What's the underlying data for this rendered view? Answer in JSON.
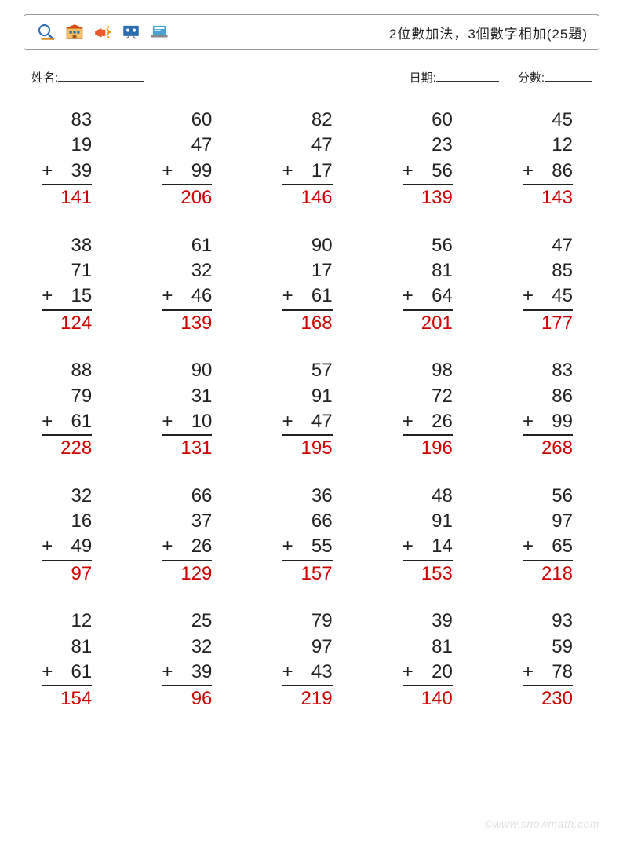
{
  "header": {
    "title": "2位數加法，3個數字相加(25題)"
  },
  "info": {
    "name_label": "姓名:",
    "date_label": "日期:",
    "score_label": "分數:"
  },
  "style": {
    "text_color": "#222222",
    "answer_color": "#d00000",
    "border_color": "#999999",
    "background_color": "#ffffff",
    "problem_fontsize": 24,
    "title_fontsize": 17,
    "info_fontsize": 15,
    "columns": 5,
    "rows": 5
  },
  "problems": [
    {
      "a": 83,
      "b": 19,
      "c": 39,
      "ans": 141
    },
    {
      "a": 60,
      "b": 47,
      "c": 99,
      "ans": 206
    },
    {
      "a": 82,
      "b": 47,
      "c": 17,
      "ans": 146
    },
    {
      "a": 60,
      "b": 23,
      "c": 56,
      "ans": 139
    },
    {
      "a": 45,
      "b": 12,
      "c": 86,
      "ans": 143
    },
    {
      "a": 38,
      "b": 71,
      "c": 15,
      "ans": 124
    },
    {
      "a": 61,
      "b": 32,
      "c": 46,
      "ans": 139
    },
    {
      "a": 90,
      "b": 17,
      "c": 61,
      "ans": 168
    },
    {
      "a": 56,
      "b": 81,
      "c": 64,
      "ans": 201
    },
    {
      "a": 47,
      "b": 85,
      "c": 45,
      "ans": 177
    },
    {
      "a": 88,
      "b": 79,
      "c": 61,
      "ans": 228
    },
    {
      "a": 90,
      "b": 31,
      "c": 10,
      "ans": 131
    },
    {
      "a": 57,
      "b": 91,
      "c": 47,
      "ans": 195
    },
    {
      "a": 98,
      "b": 72,
      "c": 26,
      "ans": 196
    },
    {
      "a": 83,
      "b": 86,
      "c": 99,
      "ans": 268
    },
    {
      "a": 32,
      "b": 16,
      "c": 49,
      "ans": 97
    },
    {
      "a": 66,
      "b": 37,
      "c": 26,
      "ans": 129
    },
    {
      "a": 36,
      "b": 66,
      "c": 55,
      "ans": 157
    },
    {
      "a": 48,
      "b": 91,
      "c": 14,
      "ans": 153
    },
    {
      "a": 56,
      "b": 97,
      "c": 65,
      "ans": 218
    },
    {
      "a": 12,
      "b": 81,
      "c": 61,
      "ans": 154
    },
    {
      "a": 25,
      "b": 32,
      "c": 39,
      "ans": 96
    },
    {
      "a": 79,
      "b": 97,
      "c": 43,
      "ans": 219
    },
    {
      "a": 39,
      "b": 81,
      "c": 20,
      "ans": 140
    },
    {
      "a": 93,
      "b": 59,
      "c": 78,
      "ans": 230
    }
  ],
  "operator": "+",
  "watermark": "©www.snowmath.com"
}
